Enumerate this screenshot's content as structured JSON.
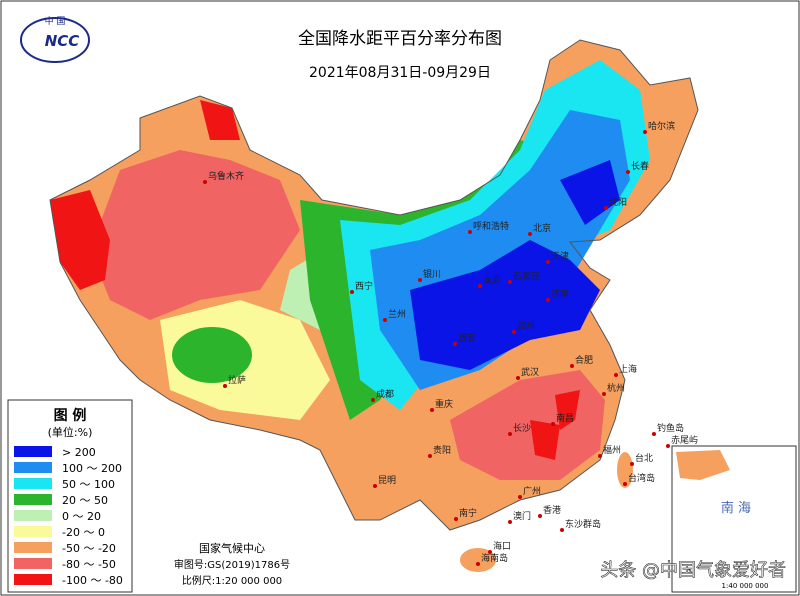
{
  "header": {
    "logo_top": "中 国",
    "logo": "NCC",
    "title": "全国降水距平百分率分布图",
    "subtitle": "2021年08月31日-09月29日"
  },
  "legend": {
    "title": "图 例",
    "unit": "(单位:%)",
    "items": [
      {
        "label": "> 200",
        "color": "#0a14e6"
      },
      {
        "label": "100 ～ 200",
        "color": "#1e8cf0"
      },
      {
        "label": "50 ～ 100",
        "color": "#19e6f0"
      },
      {
        "label": "20 ～ 50",
        "color": "#2db42d"
      },
      {
        "label": "0 ～ 20",
        "color": "#bef0b4"
      },
      {
        "label": "-20 ～ 0",
        "color": "#fafa9b"
      },
      {
        "label": "-50 ～ -20",
        "color": "#f5a05f"
      },
      {
        "label": "-80 ～ -50",
        "color": "#f06464"
      },
      {
        "label": "-100 ～ -80",
        "color": "#f01414"
      }
    ]
  },
  "cities": [
    "乌鲁木齐",
    "呼和浩特",
    "北京",
    "天津",
    "石家庄",
    "太原",
    "银川",
    "西宁",
    "兰州",
    "济南",
    "郑州",
    "西安",
    "拉萨",
    "成都",
    "重庆",
    "武汉",
    "合肥",
    "上海",
    "杭州",
    "长沙",
    "南昌",
    "福州",
    "台北",
    "贵阳",
    "昆明",
    "南宁",
    "广州",
    "香港",
    "澳门",
    "海口",
    "长春",
    "哈尔滨",
    "沈阳",
    "台湾岛",
    "海南岛",
    "钓鱼岛",
    "赤尾屿",
    "东沙群岛"
  ],
  "credits": {
    "org": "国家气候中心",
    "approval": "审图号:GS(2019)1786号",
    "scale": "比例尺:1:20 000 000"
  },
  "inset": {
    "sea": "南 海",
    "scale": "1:40 000 000"
  },
  "watermark": "头条 @中国气象爱好者"
}
